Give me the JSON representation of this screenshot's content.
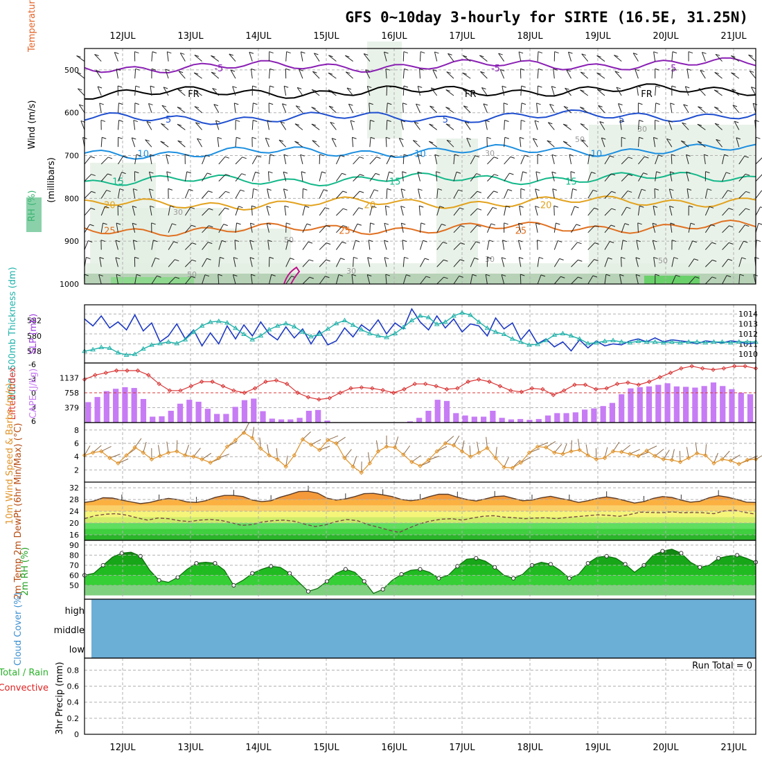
{
  "title": "GFS 0~10day 3-hourly for SIRTE (16.5E, 31.25N)",
  "date_labels": [
    "12JUL",
    "13JUL",
    "14JUL",
    "15JUL",
    "16JUL",
    "17JUL",
    "18JUL",
    "19JUL",
    "20JUL",
    "21JUL"
  ],
  "colors": {
    "wind_line": "#0f7d7d",
    "temp_label": "#e0642a",
    "rh_label": "#3cb371",
    "slp": "#1d39c4",
    "thickness": "#20b2aa",
    "cape": "#c77cf5",
    "lifted_index": "#d93636",
    "wind10": "#e0932a",
    "temp_band": "#f07a10",
    "rh_green": "#22cc22",
    "cloud": "#6baed6",
    "rain_total": "#2ab22a",
    "rain_conv": "#e02020"
  },
  "chart_data": [
    {
      "type": "contour",
      "panel": "upper-air",
      "ylabel": "(millibars)",
      "side_labels": [
        "Wind (m/s)",
        "Temperature (°C)",
        "RH (%)"
      ],
      "yticks": [
        500,
        600,
        700,
        800,
        900,
        1000
      ],
      "ylim": [
        1000,
        450
      ],
      "temperature_isotherms": [
        {
          "label": "-5",
          "pressure_mb": 495,
          "color": "#8a1fb4"
        },
        {
          "label": "FR",
          "pressure_mb": 555,
          "color": "#000000"
        },
        {
          "label": "5",
          "pressure_mb": 615,
          "color": "#1f4fd0"
        },
        {
          "label": "10",
          "pressure_mb": 695,
          "color": "#1c8fe0"
        },
        {
          "label": "15",
          "pressure_mb": 760,
          "color": "#13b889"
        },
        {
          "label": "20",
          "pressure_mb": 815,
          "color": "#e2a21c"
        },
        {
          "label": "25",
          "pressure_mb": 875,
          "color": "#e07020"
        }
      ],
      "rh_contours": [
        "30",
        "50",
        "30",
        "30",
        "50",
        "30",
        "50",
        "30",
        "50"
      ]
    },
    {
      "type": "line",
      "panel": "slp-thickness",
      "series": [
        {
          "name": "SLP (mb)",
          "axis": "right",
          "values": [
            1013.5,
            1012.8,
            1013.8,
            1012.6,
            1013.2,
            1012.4,
            1013.9,
            1012.3,
            1013.1,
            1011.2,
            1011.8,
            1013.0,
            1011.5,
            1012.4,
            1010.8,
            1012.1,
            1011.0,
            1012.8,
            1011.5,
            1012.9,
            1011.8,
            1013.2,
            1012.0,
            1011.4,
            1012.7,
            1011.6,
            1012.5,
            1011.0,
            1012.3,
            1010.9,
            1011.3,
            1012.6,
            1011.7,
            1012.9,
            1012.3,
            1013.4,
            1012.0,
            1013.1,
            1012.5,
            1014.5,
            1013.2,
            1012.4,
            1013.8,
            1012.6,
            1013.5,
            1012.2,
            1013.0,
            1012.8,
            1011.8,
            1013.6,
            1012.5,
            1013.1,
            1011.4,
            1012.4,
            1011.0,
            1011.5,
            1010.7,
            1011.2,
            1010.3,
            1011.4,
            1010.6,
            1011.3,
            1010.8,
            1011.0,
            1010.9,
            1011.3,
            1011.5,
            1011.2,
            1011.6,
            1011.2,
            1011.4,
            1011.3,
            1011.2,
            1011.0,
            1011.3,
            1011.2,
            1011.1,
            1011.3,
            1011.2,
            1011.0,
            1011.1
          ]
        },
        {
          "name": "Thickness 1000~500mb (dm)",
          "axis": "left",
          "values": [
            578.0,
            578.2,
            578.5,
            578.4,
            577.8,
            577.5,
            577.6,
            578.3,
            578.8,
            579.0,
            579.2,
            579.0,
            579.5,
            580.5,
            581.3,
            581.8,
            581.9,
            581.7,
            581.0,
            580.2,
            579.5,
            580.0,
            580.8,
            581.3,
            581.6,
            581.2,
            580.5,
            579.9,
            580.2,
            580.9,
            581.6,
            582.0,
            581.4,
            580.8,
            580.3,
            580.0,
            579.8,
            580.3,
            581.1,
            582.0,
            582.6,
            582.4,
            581.5,
            581.8,
            582.6,
            583.0,
            582.7,
            581.8,
            581.0,
            580.5,
            580.2,
            579.6,
            579.2,
            578.8,
            578.9,
            579.4,
            580.1,
            580.3,
            580.0,
            579.6,
            579.0,
            579.1,
            579.3,
            579.4,
            579.2,
            579.1,
            579.3,
            579.2,
            579.2,
            579.1,
            579.2,
            579.1,
            579.2,
            579.2,
            579.1,
            579.2,
            579.2,
            579.1,
            579.2,
            579.2,
            579.2
          ]
        }
      ],
      "yticks_left": [
        578,
        580,
        582
      ],
      "yticks_right": [
        1010,
        1011,
        1012,
        1013,
        1014
      ],
      "ylabel_left": "1000~500mb Thickness (dm)",
      "ylabel_right": "SLP (mb)"
    },
    {
      "type": "bar",
      "panel": "cape-li",
      "series": [
        {
          "name": "CAPE (J/kg)",
          "axis": "left",
          "values": [
            520,
            650,
            800,
            860,
            900,
            880,
            600,
            150,
            160,
            300,
            480,
            580,
            530,
            350,
            220,
            220,
            400,
            570,
            610,
            290,
            100,
            80,
            80,
            120,
            300,
            320,
            50,
            10,
            5,
            5,
            5,
            5,
            5,
            10,
            5,
            30,
            120,
            300,
            580,
            550,
            240,
            180,
            150,
            150,
            300,
            120,
            80,
            90,
            70,
            90,
            180,
            240,
            240,
            260,
            330,
            360,
            420,
            500,
            720,
            870,
            900,
            920,
            960,
            1000,
            920,
            910,
            890,
            930,
            1020,
            930,
            850,
            760,
            720
          ],
          "lifted_index": [
            -3,
            -4,
            -4.5,
            -5,
            -5,
            -5,
            -4,
            -2,
            -0.5,
            -0.5,
            -1.5,
            -2.5,
            -2.5,
            -1.5,
            -0.5,
            0,
            -1,
            -2.5,
            -2.8,
            -2,
            0,
            1,
            1.5,
            1.2,
            0,
            -1,
            -1.2,
            -1,
            -0.6,
            0,
            -0.8,
            -2,
            -2,
            -1.5,
            -0.8,
            -1,
            -2.5,
            -3,
            -2.5,
            -1.5,
            -0.5,
            -0.2,
            -1,
            -0.8,
            0.5,
            -0.5,
            -1.8,
            -1.8,
            -0.8,
            -1,
            -2,
            -2.3,
            -1.8,
            -2.5,
            -3.5,
            -4.5,
            -5.5,
            -6,
            -5.5,
            -5.2,
            -5.5,
            -6,
            -6,
            -5.5
          ]
        }
      ],
      "yticks_left": [
        379,
        758,
        1137
      ],
      "yticks_right": [
        -6,
        -3,
        0,
        3,
        6
      ],
      "ylabel_left": "CAPE (J/kg)",
      "ylabel_right": "Lifted Index"
    },
    {
      "type": "line",
      "panel": "wind10m",
      "series": [
        {
          "name": "10m Wind Speed (m/s)",
          "values": [
            4.2,
            4.6,
            4.8,
            3.8,
            3.0,
            4.2,
            5.4,
            4.6,
            3.6,
            4.1,
            4.6,
            4.8,
            4.2,
            4.0,
            3.6,
            3.1,
            3.8,
            5.5,
            6.5,
            7.6,
            6.8,
            5.2,
            4.2,
            3.6,
            2.5,
            4.2,
            6.6,
            5.8,
            5.0,
            6.5,
            6.0,
            3.8,
            2.5,
            1.6,
            3.0,
            4.8,
            5.5,
            5.4,
            4.3,
            3.2,
            2.6,
            3.5,
            4.8,
            6.0,
            5.7,
            4.8,
            4.0,
            4.6,
            5.3,
            3.8,
            2.4,
            2.3,
            3.1,
            4.6,
            5.5,
            5.4,
            4.6,
            4.4,
            4.8,
            5.0,
            4.2,
            3.6,
            3.8,
            4.8,
            4.7,
            4.4,
            4.1,
            4.9,
            4.1,
            3.6,
            3.5,
            3.2,
            3.8,
            4.5,
            4.2,
            3.0,
            3.6,
            3.4,
            2.9,
            3.5,
            3.6
          ]
        }
      ],
      "yticks": [
        2,
        4,
        6,
        8
      ],
      "ylabel": "10m Wind Speed & Barbs (m/s)"
    },
    {
      "type": "area",
      "panel": "temp2m",
      "series": [
        {
          "name": "2m Temp",
          "values": [
            27,
            27.5,
            28.6,
            28.5,
            27.8,
            27.2,
            26.6,
            27.0,
            27.8,
            28.4,
            28.0,
            27.2,
            27.0,
            27.6,
            28.7,
            29.4,
            29.4,
            29.0,
            27.8,
            27.3,
            27.6,
            28.8,
            29.7,
            30.7,
            30.8,
            30.2,
            28.5,
            27.8,
            28.2,
            29.0,
            30.0,
            30.1,
            29.6,
            29.0,
            28.0,
            27.6,
            28.0,
            29.0,
            29.8,
            29.8,
            28.8,
            28.0,
            27.5,
            28.2,
            29.0,
            29.2,
            28.4,
            27.6,
            27.8,
            28.6,
            29.1,
            28.4,
            27.8,
            27.0,
            27.6,
            28.4,
            28.9,
            28.4,
            27.6,
            26.8,
            27.3,
            28.4,
            29.0,
            28.7,
            27.8,
            27.1,
            27.4,
            28.6,
            29.3,
            28.8,
            28.0,
            27.1,
            27.0
          ]
        },
        {
          "name": "2m DewPt",
          "values": [
            21.5,
            22.5,
            23.0,
            23.2,
            22.7,
            21.8,
            21.0,
            21.7,
            21.5,
            20.8,
            20.5,
            21.0,
            21.2,
            20.9,
            20.1,
            19.2,
            19.5,
            20.4,
            20.8,
            21.0,
            20.6,
            19.6,
            18.8,
            19.4,
            20.5,
            21.2,
            20.8,
            19.5,
            18.6,
            17.6,
            16.8,
            18.4,
            19.8,
            20.7,
            21.3,
            21.5,
            21.0,
            21.7,
            22.3,
            22.5,
            22.0,
            21.8,
            21.5,
            21.7,
            21.8,
            21.5,
            21.9,
            22.2,
            22.5,
            22.8,
            22.6,
            22.3,
            22.9,
            23.7,
            23.6,
            23.5,
            23.8,
            23.5,
            23.6,
            23.5,
            23.2,
            24.1,
            24.4,
            23.6,
            23.0
          ]
        }
      ],
      "yticks": [
        16,
        20,
        24,
        28,
        32
      ],
      "ylabel": "2m Temp 2m DewPt (6hr Min/Max) (°C)"
    },
    {
      "type": "area",
      "panel": "rh2m",
      "series": [
        {
          "name": "2m RH",
          "values": [
            60,
            62,
            70,
            78,
            82,
            83,
            79,
            65,
            55,
            53,
            58,
            66,
            72,
            73,
            72,
            65,
            50,
            55,
            62,
            66,
            69,
            68,
            62,
            53,
            44,
            47,
            54,
            62,
            66,
            63,
            54,
            42,
            46,
            55,
            61,
            65,
            66,
            63,
            57,
            60,
            69,
            76,
            77,
            74,
            68,
            60,
            57,
            61,
            70,
            73,
            71,
            65,
            57,
            61,
            72,
            78,
            79,
            77,
            71,
            63,
            70,
            80,
            84,
            86,
            82,
            73,
            68,
            70,
            77,
            79,
            80,
            77,
            73
          ]
        }
      ],
      "yticks": [
        50,
        60,
        70,
        80,
        90
      ],
      "ylabel": "2m RH (%)"
    },
    {
      "type": "area",
      "panel": "cloud",
      "ylabel": "Cloud Cover (%)",
      "levels": [
        "high",
        "middle",
        "low"
      ],
      "series": [
        {
          "name": "Cloud Cover",
          "values": [
            100
          ]
        }
      ]
    },
    {
      "type": "bar",
      "panel": "precip",
      "ylabel": "3hr Precip (mm)",
      "side_labels": [
        "Total / Rain",
        "Convective"
      ],
      "yticks": [
        "0",
        "0.2",
        "0.4",
        "0.6",
        "0.8"
      ],
      "run_total": "Run Total = 0",
      "series": [
        {
          "name": "Total / Rain",
          "values": []
        },
        {
          "name": "Convective",
          "values": []
        }
      ]
    }
  ]
}
